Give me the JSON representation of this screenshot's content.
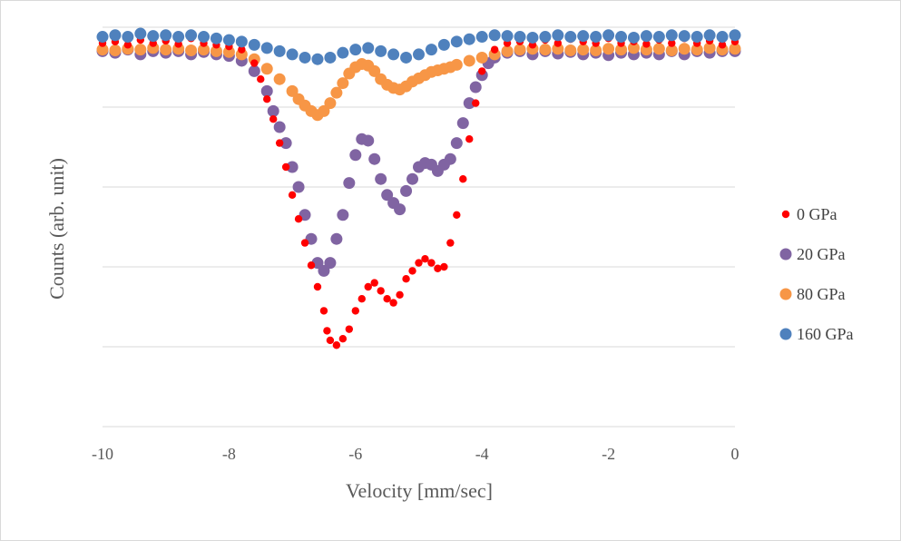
{
  "chart_data": {
    "type": "scatter",
    "xlabel": "Velocity [mm/sec]",
    "ylabel": "Counts (arb. unit)",
    "xlim": [
      -10,
      0
    ],
    "ylim": [
      0,
      5
    ],
    "x_ticks": [
      "-10",
      "-8",
      "-6",
      "-4",
      "-2",
      "0"
    ],
    "grid": true,
    "legend_position": "right",
    "series": [
      {
        "name": "0 GPa",
        "color": "#ff0000",
        "marker_size": "small",
        "points": [
          [
            -10.0,
            4.8
          ],
          [
            -9.8,
            4.82
          ],
          [
            -9.6,
            4.78
          ],
          [
            -9.4,
            4.84
          ],
          [
            -9.2,
            4.8
          ],
          [
            -9.0,
            4.83
          ],
          [
            -8.8,
            4.79
          ],
          [
            -8.6,
            4.86
          ],
          [
            -8.4,
            4.8
          ],
          [
            -8.2,
            4.78
          ],
          [
            -8.0,
            4.76
          ],
          [
            -7.8,
            4.72
          ],
          [
            -7.6,
            4.55
          ],
          [
            -7.5,
            4.35
          ],
          [
            -7.4,
            4.1
          ],
          [
            -7.3,
            3.85
          ],
          [
            -7.2,
            3.55
          ],
          [
            -7.1,
            3.25
          ],
          [
            -7.0,
            2.9
          ],
          [
            -6.9,
            2.6
          ],
          [
            -6.8,
            2.3
          ],
          [
            -6.7,
            2.02
          ],
          [
            -6.6,
            1.75
          ],
          [
            -6.5,
            1.45
          ],
          [
            -6.45,
            1.2
          ],
          [
            -6.4,
            1.08
          ],
          [
            -6.3,
            1.02
          ],
          [
            -6.2,
            1.1
          ],
          [
            -6.1,
            1.22
          ],
          [
            -6.0,
            1.45
          ],
          [
            -5.9,
            1.6
          ],
          [
            -5.8,
            1.75
          ],
          [
            -5.7,
            1.8
          ],
          [
            -5.6,
            1.7
          ],
          [
            -5.5,
            1.6
          ],
          [
            -5.4,
            1.55
          ],
          [
            -5.3,
            1.65
          ],
          [
            -5.2,
            1.85
          ],
          [
            -5.1,
            1.95
          ],
          [
            -5.0,
            2.05
          ],
          [
            -4.9,
            2.1
          ],
          [
            -4.8,
            2.05
          ],
          [
            -4.7,
            1.98
          ],
          [
            -4.6,
            2.0
          ],
          [
            -4.5,
            2.3
          ],
          [
            -4.4,
            2.65
          ],
          [
            -4.3,
            3.1
          ]
        ],
        "tail_points": [
          [
            -4.2,
            3.6
          ],
          [
            -4.1,
            4.05
          ],
          [
            -4.0,
            4.45
          ],
          [
            -3.8,
            4.72
          ],
          [
            -3.6,
            4.8
          ],
          [
            -3.4,
            4.82
          ],
          [
            -3.2,
            4.78
          ],
          [
            -3.0,
            4.84
          ],
          [
            -2.8,
            4.8
          ],
          [
            -2.6,
            4.85
          ],
          [
            -2.4,
            4.82
          ],
          [
            -2.2,
            4.8
          ],
          [
            -2.0,
            4.86
          ],
          [
            -1.8,
            4.8
          ],
          [
            -1.6,
            4.82
          ],
          [
            -1.4,
            4.79
          ],
          [
            -1.2,
            4.84
          ],
          [
            -1.0,
            4.8
          ],
          [
            -0.8,
            4.86
          ],
          [
            -0.6,
            4.8
          ],
          [
            -0.4,
            4.83
          ],
          [
            -0.2,
            4.78
          ],
          [
            0.0,
            4.82
          ]
        ]
      },
      {
        "name": "20 GPa",
        "color": "#8064a2",
        "marker_size": "large",
        "points": [
          [
            -10.0,
            4.7
          ],
          [
            -9.8,
            4.68
          ],
          [
            -9.6,
            4.72
          ],
          [
            -9.4,
            4.66
          ],
          [
            -9.2,
            4.7
          ],
          [
            -9.0,
            4.68
          ],
          [
            -8.8,
            4.7
          ],
          [
            -8.6,
            4.66
          ],
          [
            -8.4,
            4.69
          ],
          [
            -8.2,
            4.66
          ],
          [
            -8.0,
            4.64
          ],
          [
            -7.8,
            4.58
          ],
          [
            -7.6,
            4.45
          ],
          [
            -7.4,
            4.2
          ],
          [
            -7.3,
            3.95
          ],
          [
            -7.2,
            3.75
          ],
          [
            -7.1,
            3.55
          ],
          [
            -7.0,
            3.25
          ],
          [
            -6.9,
            3.0
          ],
          [
            -6.8,
            2.65
          ],
          [
            -6.7,
            2.35
          ],
          [
            -6.6,
            2.05
          ],
          [
            -6.5,
            1.95
          ],
          [
            -6.4,
            2.05
          ],
          [
            -6.3,
            2.35
          ],
          [
            -6.2,
            2.65
          ],
          [
            -6.1,
            3.05
          ],
          [
            -6.0,
            3.4
          ],
          [
            -5.9,
            3.6
          ],
          [
            -5.8,
            3.58
          ],
          [
            -5.7,
            3.35
          ],
          [
            -5.6,
            3.1
          ],
          [
            -5.5,
            2.9
          ],
          [
            -5.4,
            2.8
          ],
          [
            -5.3,
            2.72
          ],
          [
            -5.2,
            2.95
          ],
          [
            -5.1,
            3.1
          ],
          [
            -5.0,
            3.25
          ],
          [
            -4.9,
            3.3
          ],
          [
            -4.8,
            3.28
          ],
          [
            -4.7,
            3.2
          ],
          [
            -4.6,
            3.28
          ],
          [
            -4.5,
            3.35
          ],
          [
            -4.4,
            3.55
          ],
          [
            -4.3,
            3.8
          ],
          [
            -4.2,
            4.05
          ],
          [
            -4.1,
            4.25
          ],
          [
            -4.0,
            4.4
          ],
          [
            -3.9,
            4.55
          ],
          [
            -3.8,
            4.62
          ],
          [
            -3.6,
            4.68
          ],
          [
            -3.4,
            4.7
          ],
          [
            -3.2,
            4.66
          ],
          [
            -3.0,
            4.7
          ],
          [
            -2.8,
            4.67
          ],
          [
            -2.6,
            4.69
          ],
          [
            -2.4,
            4.66
          ],
          [
            -2.2,
            4.68
          ],
          [
            -2.0,
            4.65
          ],
          [
            -1.8,
            4.68
          ],
          [
            -1.6,
            4.66
          ],
          [
            -1.4,
            4.68
          ],
          [
            -1.2,
            4.66
          ],
          [
            -1.0,
            4.7
          ],
          [
            -0.8,
            4.66
          ],
          [
            -0.6,
            4.7
          ],
          [
            -0.4,
            4.68
          ],
          [
            -0.2,
            4.7
          ],
          [
            0.0,
            4.7
          ]
        ]
      },
      {
        "name": "80 GPa",
        "color": "#f79646",
        "marker_size": "large",
        "points": [
          [
            -10.0,
            4.72
          ],
          [
            -9.8,
            4.71
          ],
          [
            -9.6,
            4.73
          ],
          [
            -9.4,
            4.72
          ],
          [
            -9.2,
            4.74
          ],
          [
            -9.0,
            4.72
          ],
          [
            -8.8,
            4.73
          ],
          [
            -8.6,
            4.71
          ],
          [
            -8.4,
            4.72
          ],
          [
            -8.2,
            4.7
          ],
          [
            -8.0,
            4.69
          ],
          [
            -7.8,
            4.66
          ],
          [
            -7.6,
            4.6
          ],
          [
            -7.4,
            4.48
          ],
          [
            -7.2,
            4.35
          ],
          [
            -7.0,
            4.2
          ],
          [
            -6.9,
            4.1
          ],
          [
            -6.8,
            4.02
          ],
          [
            -6.7,
            3.95
          ],
          [
            -6.6,
            3.9
          ],
          [
            -6.5,
            3.95
          ],
          [
            -6.4,
            4.05
          ],
          [
            -6.3,
            4.18
          ],
          [
            -6.2,
            4.3
          ],
          [
            -6.1,
            4.42
          ],
          [
            -6.0,
            4.5
          ],
          [
            -5.9,
            4.54
          ],
          [
            -5.8,
            4.52
          ],
          [
            -5.7,
            4.45
          ],
          [
            -5.6,
            4.35
          ],
          [
            -5.5,
            4.28
          ],
          [
            -5.4,
            4.24
          ],
          [
            -5.3,
            4.22
          ],
          [
            -5.2,
            4.26
          ],
          [
            -5.1,
            4.32
          ],
          [
            -5.0,
            4.36
          ],
          [
            -4.9,
            4.4
          ],
          [
            -4.8,
            4.44
          ],
          [
            -4.7,
            4.46
          ],
          [
            -4.6,
            4.48
          ],
          [
            -4.5,
            4.5
          ],
          [
            -4.4,
            4.53
          ],
          [
            -4.2,
            4.58
          ],
          [
            -4.0,
            4.62
          ],
          [
            -3.8,
            4.66
          ],
          [
            -3.6,
            4.7
          ],
          [
            -3.4,
            4.72
          ],
          [
            -3.2,
            4.73
          ],
          [
            -3.0,
            4.72
          ],
          [
            -2.8,
            4.73
          ],
          [
            -2.6,
            4.71
          ],
          [
            -2.4,
            4.72
          ],
          [
            -2.2,
            4.71
          ],
          [
            -2.0,
            4.73
          ],
          [
            -1.8,
            4.72
          ],
          [
            -1.6,
            4.74
          ],
          [
            -1.4,
            4.72
          ],
          [
            -1.2,
            4.73
          ],
          [
            -1.0,
            4.71
          ],
          [
            -0.8,
            4.73
          ],
          [
            -0.6,
            4.72
          ],
          [
            -0.4,
            4.74
          ],
          [
            -0.2,
            4.72
          ],
          [
            0.0,
            4.73
          ]
        ]
      },
      {
        "name": "160 GPa",
        "color": "#4f81bd",
        "marker_size": "large",
        "points": [
          [
            -10.0,
            4.88
          ],
          [
            -9.8,
            4.9
          ],
          [
            -9.6,
            4.88
          ],
          [
            -9.4,
            4.92
          ],
          [
            -9.2,
            4.89
          ],
          [
            -9.0,
            4.9
          ],
          [
            -8.8,
            4.88
          ],
          [
            -8.6,
            4.9
          ],
          [
            -8.4,
            4.88
          ],
          [
            -8.2,
            4.86
          ],
          [
            -8.0,
            4.84
          ],
          [
            -7.8,
            4.82
          ],
          [
            -7.6,
            4.78
          ],
          [
            -7.4,
            4.74
          ],
          [
            -7.2,
            4.7
          ],
          [
            -7.0,
            4.66
          ],
          [
            -6.8,
            4.62
          ],
          [
            -6.6,
            4.6
          ],
          [
            -6.4,
            4.62
          ],
          [
            -6.2,
            4.68
          ],
          [
            -6.0,
            4.72
          ],
          [
            -5.8,
            4.74
          ],
          [
            -5.6,
            4.7
          ],
          [
            -5.4,
            4.66
          ],
          [
            -5.2,
            4.62
          ],
          [
            -5.0,
            4.66
          ],
          [
            -4.8,
            4.72
          ],
          [
            -4.6,
            4.78
          ],
          [
            -4.4,
            4.82
          ],
          [
            -4.2,
            4.85
          ],
          [
            -4.0,
            4.88
          ],
          [
            -3.8,
            4.9
          ],
          [
            -3.6,
            4.89
          ],
          [
            -3.4,
            4.88
          ],
          [
            -3.2,
            4.87
          ],
          [
            -3.0,
            4.88
          ],
          [
            -2.8,
            4.9
          ],
          [
            -2.6,
            4.88
          ],
          [
            -2.4,
            4.89
          ],
          [
            -2.2,
            4.88
          ],
          [
            -2.0,
            4.9
          ],
          [
            -1.8,
            4.88
          ],
          [
            -1.6,
            4.87
          ],
          [
            -1.4,
            4.89
          ],
          [
            -1.2,
            4.88
          ],
          [
            -1.0,
            4.9
          ],
          [
            -0.8,
            4.89
          ],
          [
            -0.6,
            4.88
          ],
          [
            -0.4,
            4.9
          ],
          [
            -0.2,
            4.88
          ],
          [
            0.0,
            4.9
          ]
        ]
      }
    ]
  }
}
